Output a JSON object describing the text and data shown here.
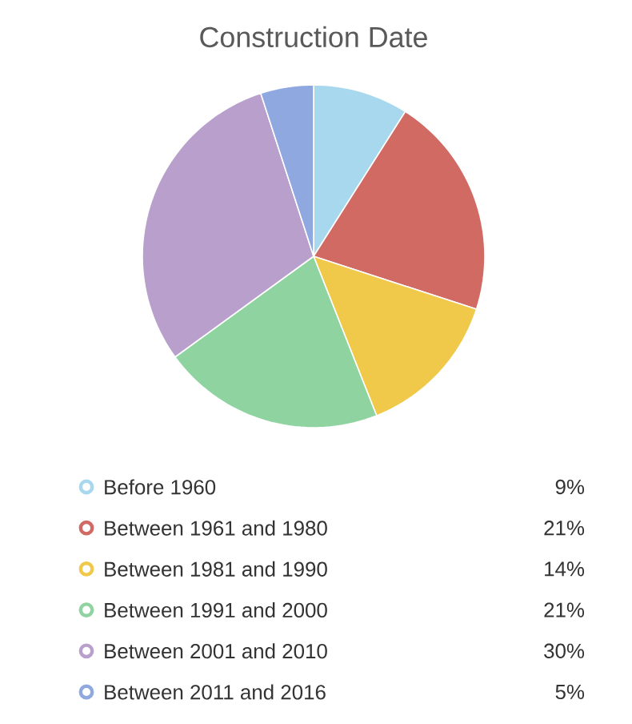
{
  "chart_data": {
    "type": "pie",
    "title": "Construction Date",
    "categories": [
      "Before 1960",
      "Between 1961 and 1980",
      "Between 1981 and 1990",
      "Between 1991 and 2000",
      "Between 2001 and 2010",
      "Between 2011 and 2016"
    ],
    "values": [
      9,
      21,
      14,
      21,
      30,
      5
    ],
    "value_labels": [
      "9%",
      "21%",
      "14%",
      "21%",
      "30%",
      "5%"
    ],
    "colors": [
      "#a8d8ee",
      "#d06a62",
      "#f0c84a",
      "#8fd3a0",
      "#b89fcc",
      "#8fa8e0"
    ],
    "legend": "bottom"
  }
}
